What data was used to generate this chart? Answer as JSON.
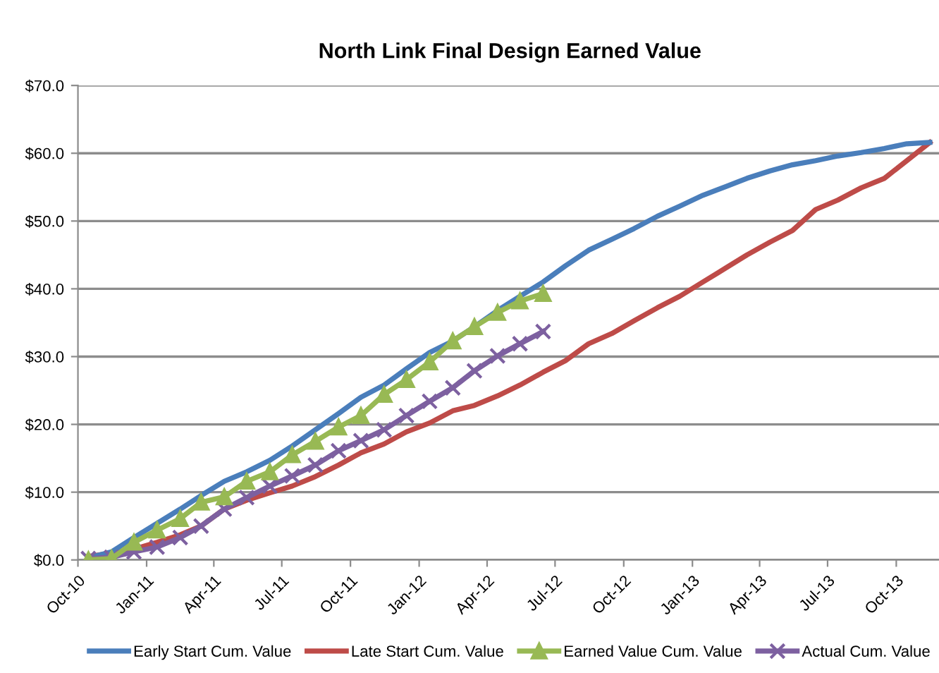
{
  "chart_data": {
    "type": "line",
    "title": "North Link Final Design Earned Value",
    "x": [
      "2010-10-15",
      "2010-11-15",
      "2010-12-15",
      "2011-01-15",
      "2011-02-15",
      "2011-03-15",
      "2011-04-15",
      "2011-05-15",
      "2011-06-15",
      "2011-07-15",
      "2011-08-15",
      "2011-09-15",
      "2011-10-15",
      "2011-11-15",
      "2011-12-15",
      "2012-01-15",
      "2012-02-15",
      "2012-03-15",
      "2012-04-15",
      "2012-05-15",
      "2012-06-15",
      "2012-07-15",
      "2012-08-15",
      "2012-09-15",
      "2012-10-15",
      "2012-11-15",
      "2012-12-15",
      "2013-01-15",
      "2013-02-15",
      "2013-03-15",
      "2013-04-15",
      "2013-05-15",
      "2013-06-15",
      "2013-07-15",
      "2013-08-15",
      "2013-09-15",
      "2013-10-15",
      "2013-11-15"
    ],
    "series": [
      {
        "name": "Early Start Cum. Value",
        "color": "#4a7ebb",
        "marker": "none",
        "values": [
          0.3,
          1.2,
          3.3,
          5.4,
          7.5,
          9.5,
          11.6,
          13.0,
          14.7,
          16.8,
          19.2,
          21.6,
          24.0,
          25.8,
          28.2,
          30.6,
          32.3,
          34.4,
          36.8,
          38.9,
          41.0,
          43.4,
          45.7,
          47.3,
          48.9,
          50.7,
          52.2,
          53.8,
          55.1,
          56.3,
          57.4,
          58.3,
          58.9,
          59.6,
          60.1,
          60.7,
          61.4,
          61.6
        ]
      },
      {
        "name": "Late Start Cum. Value",
        "color": "#be4b48",
        "marker": "none",
        "values": [
          0.5,
          1.0,
          1.6,
          2.6,
          3.7,
          5.0,
          7.5,
          8.8,
          9.9,
          10.9,
          12.3,
          14.0,
          15.8,
          17.1,
          18.9,
          20.2,
          22.0,
          22.8,
          24.2,
          25.8,
          27.7,
          29.4,
          31.9,
          33.4,
          35.3,
          37.2,
          38.9,
          41.0,
          43.1,
          45.0,
          46.9,
          48.6,
          51.7,
          53.1,
          54.9,
          56.3,
          58.9,
          61.6
        ]
      },
      {
        "name": "Earned Value Cum. Value",
        "color": "#98b954",
        "marker": "triangle",
        "values": [
          0,
          0.2,
          2.6,
          4.4,
          6.1,
          8.5,
          9.3,
          11.6,
          13.0,
          15.5,
          17.5,
          19.6,
          21.3,
          24.4,
          26.6,
          29.2,
          32.3,
          34.4,
          36.5,
          38.2,
          39.3,
          null,
          null,
          null,
          null,
          null,
          null,
          null,
          null,
          null,
          null,
          null,
          null,
          null,
          null,
          null,
          null,
          null
        ]
      },
      {
        "name": "Actual Cum. Value",
        "color": "#7d60a0",
        "marker": "cross",
        "values": [
          0.2,
          0.4,
          1.2,
          1.9,
          3.3,
          5.0,
          7.5,
          9.2,
          10.9,
          12.4,
          14.0,
          16.1,
          17.6,
          19.2,
          21.3,
          23.4,
          25.4,
          27.9,
          30.1,
          31.9,
          33.7,
          null,
          null,
          null,
          null,
          null,
          null,
          null,
          null,
          null,
          null,
          null,
          null,
          null,
          null,
          null,
          null,
          null
        ]
      }
    ],
    "xlim": [
      "2010-10-01",
      "2013-12-01"
    ],
    "xticks": [
      {
        "value": "2010-10-01",
        "label": "Oct-10"
      },
      {
        "value": "2011-01-01",
        "label": "Jan-11"
      },
      {
        "value": "2011-04-01",
        "label": "Apr-11"
      },
      {
        "value": "2011-07-01",
        "label": "Jul-11"
      },
      {
        "value": "2011-10-01",
        "label": "Oct-11"
      },
      {
        "value": "2012-01-01",
        "label": "Jan-12"
      },
      {
        "value": "2012-04-01",
        "label": "Apr-12"
      },
      {
        "value": "2012-07-01",
        "label": "Jul-12"
      },
      {
        "value": "2012-10-01",
        "label": "Oct-12"
      },
      {
        "value": "2013-01-01",
        "label": "Jan-13"
      },
      {
        "value": "2013-04-01",
        "label": "Apr-13"
      },
      {
        "value": "2013-07-01",
        "label": "Jul-13"
      },
      {
        "value": "2013-10-01",
        "label": "Oct-13"
      }
    ],
    "ylim": [
      0,
      70
    ],
    "yticks": [
      {
        "value": 0,
        "label": "$0.0"
      },
      {
        "value": 10,
        "label": "$10.0"
      },
      {
        "value": 20,
        "label": "$20.0"
      },
      {
        "value": 30,
        "label": "$30.0"
      },
      {
        "value": 40,
        "label": "$40.0"
      },
      {
        "value": 50,
        "label": "$50.0"
      },
      {
        "value": 60,
        "label": "$60.0"
      },
      {
        "value": 70,
        "label": "$70.0"
      }
    ],
    "grid": "y",
    "legend": "bottom",
    "line_style": "solid"
  }
}
